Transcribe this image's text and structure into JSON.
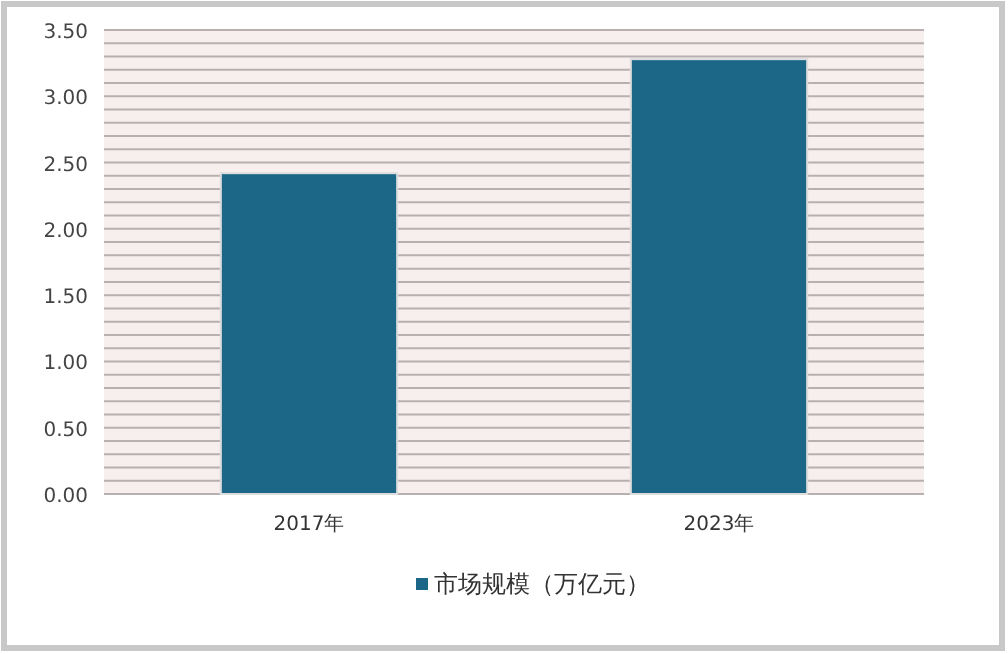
{
  "chart_data": {
    "type": "bar",
    "categories": [
      "2017年",
      "2023年"
    ],
    "series": [
      {
        "name": "市场规模（万亿元）",
        "color": "#1c6688",
        "values": [
          2.42,
          3.28
        ]
      }
    ],
    "ylim": [
      0,
      3.5
    ],
    "yticks": [
      {
        "value": 0,
        "label": "0.00"
      },
      {
        "value": 0.1,
        "label": null
      },
      {
        "value": 0.2,
        "label": null
      },
      {
        "value": 0.3,
        "label": null
      },
      {
        "value": 0.4,
        "label": null
      },
      {
        "value": 0.5,
        "label": "0.50"
      },
      {
        "value": 0.6,
        "label": null
      },
      {
        "value": 0.7,
        "label": null
      },
      {
        "value": 0.8,
        "label": null
      },
      {
        "value": 0.9,
        "label": null
      },
      {
        "value": 1.0,
        "label": "1.00"
      },
      {
        "value": 1.1,
        "label": null
      },
      {
        "value": 1.2,
        "label": null
      },
      {
        "value": 1.3,
        "label": null
      },
      {
        "value": 1.4,
        "label": null
      },
      {
        "value": 1.5,
        "label": "1.50"
      },
      {
        "value": 1.6,
        "label": null
      },
      {
        "value": 1.7,
        "label": null
      },
      {
        "value": 1.8,
        "label": null
      },
      {
        "value": 1.9,
        "label": null
      },
      {
        "value": 2.0,
        "label": "2.00"
      },
      {
        "value": 2.1,
        "label": null
      },
      {
        "value": 2.2,
        "label": null
      },
      {
        "value": 2.3,
        "label": null
      },
      {
        "value": 2.4,
        "label": null
      },
      {
        "value": 2.5,
        "label": "2.50"
      },
      {
        "value": 2.6,
        "label": null
      },
      {
        "value": 2.7,
        "label": null
      },
      {
        "value": 2.8,
        "label": null
      },
      {
        "value": 2.9,
        "label": null
      },
      {
        "value": 3.0,
        "label": "3.00"
      },
      {
        "value": 3.1,
        "label": null
      },
      {
        "value": 3.2,
        "label": null
      },
      {
        "value": 3.3,
        "label": null
      },
      {
        "value": 3.4,
        "label": null
      },
      {
        "value": 3.5,
        "label": "3.50"
      }
    ],
    "grid": "y",
    "legend": "bottom"
  }
}
